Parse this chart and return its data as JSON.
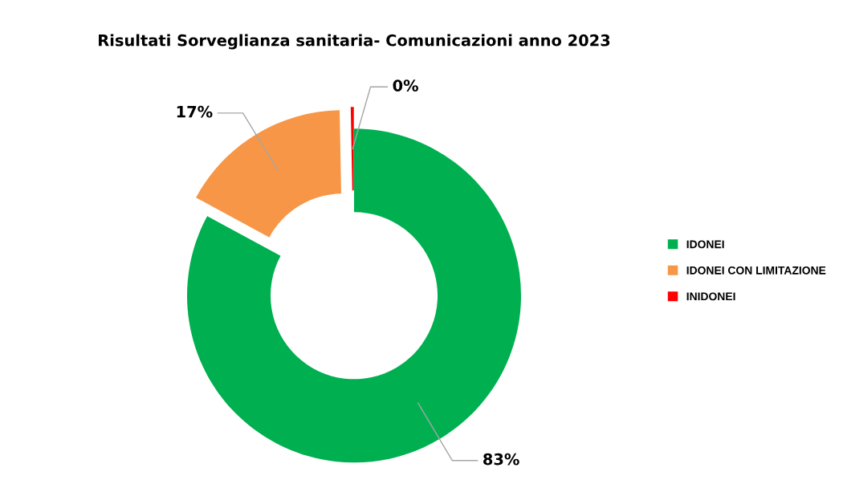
{
  "chart_data": {
    "type": "donut",
    "title": "Risultati Sorveglianza sanitaria- Comunicazioni anno 2023",
    "categories": [
      "IDONEI",
      "IDONEI CON LIMITAZIONE",
      "INIDONEI"
    ],
    "values": [
      82.9,
      16.8,
      0.3
    ],
    "value_labels": [
      "83%",
      "17%",
      "0%"
    ],
    "colors": [
      "#00b050",
      "#f79646",
      "#ff0000"
    ],
    "legend": "right"
  }
}
